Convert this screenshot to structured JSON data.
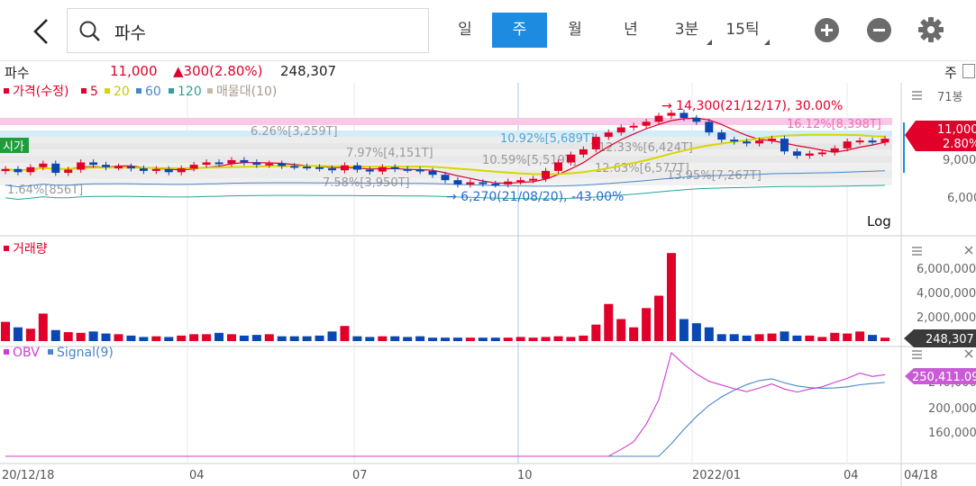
{
  "header": {
    "back_label": "back",
    "search_text": "파수",
    "periods": [
      "일",
      "주",
      "월",
      "년",
      "3분",
      "15틱"
    ],
    "active_period": "주",
    "accent": "#1d8ce0"
  },
  "info": {
    "name": "파수",
    "price": "11,000",
    "change": "▲300(2.80%)",
    "volume": "248,307",
    "side_label": "주"
  },
  "price_panel": {
    "legend_price": "가격(수정)",
    "legend_ma": [
      "5",
      "20",
      "60",
      "120"
    ],
    "legend_box": "매물대(10)",
    "open_label": "시가",
    "log_label": "Log",
    "high_annotation": "→ 14,300(21/12/17), 30.00%",
    "low_annotation": "→ 6,270(21/08/20), -43.00%",
    "supply_labels": [
      "6.26%[3,259T]",
      "16.12%[8,398T]",
      "10.92%[5,689T]",
      "12.33%[6,424T]",
      "7.97%[4,151T]",
      "10.59%[5,519T]",
      "12.63%[6,577T]",
      "7.58%[3,950T]",
      "13.95%[7,267T]",
      "1.64%[856T]"
    ],
    "y_axis": [
      "71봉",
      "9,000",
      "6,000"
    ],
    "price_tag": "11,000",
    "pct_tag": "2.80%"
  },
  "volume_panel": {
    "title": "거래량",
    "y_axis": [
      "6,000,000",
      "4,000,000",
      "2,000,000"
    ],
    "tag": "248,307"
  },
  "obv_panel": {
    "legend_obv": "OBV",
    "legend_signal": "Signal(9)",
    "y_axis": [
      "240,000",
      "200,000",
      "160,000"
    ],
    "tag": "250,411.09"
  },
  "x_axis": [
    "20/12/18",
    "04",
    "07",
    "10",
    "2022/01",
    "04",
    "04/18"
  ],
  "colors": {
    "up": "#e0002a",
    "down": "#0a47b0",
    "ma5": "#e0002a",
    "ma20": "#d7d700",
    "ma60": "#4a85c8",
    "ma120": "#2aa39a",
    "obv": "#d23bd2",
    "signal": "#4a85c8"
  },
  "chart_data": {
    "type": "candlestick",
    "interval": "weekly",
    "period": [
      "2020/12/18",
      "2022/04/18"
    ],
    "price_range_visible": [
      5500,
      16000
    ],
    "scale": "log",
    "high": {
      "value": 14300,
      "date": "21/12/17",
      "pct": 30.0
    },
    "low": {
      "value": 6270,
      "date": "21/08/20",
      "pct": -43.0
    },
    "last_close": 11000,
    "change": 300,
    "change_pct": 2.8,
    "closes": [
      8150,
      7900,
      8300,
      8600,
      7850,
      8100,
      8700,
      8500,
      8300,
      8350,
      8200,
      8000,
      8150,
      7900,
      8200,
      8500,
      8700,
      8600,
      8900,
      8700,
      8500,
      8600,
      8400,
      8350,
      8300,
      8200,
      8050,
      8450,
      8100,
      7950,
      8300,
      8150,
      8100,
      8000,
      7700,
      7300,
      7000,
      7150,
      7050,
      7000,
      7200,
      7300,
      7400,
      8000,
      8700,
      9400,
      9900,
      11200,
      11700,
      12300,
      12500,
      13000,
      13800,
      14200,
      13500,
      13000,
      11700,
      10900,
      10700,
      10500,
      10800,
      11000,
      9700,
      9300,
      9500,
      9600,
      10000,
      10700,
      10800,
      10600,
      11000
    ],
    "volume": [
      1400000,
      1000000,
      900000,
      2000000,
      800000,
      650000,
      600000,
      700000,
      550000,
      500000,
      400000,
      300000,
      350000,
      300000,
      400000,
      500000,
      500000,
      600000,
      500000,
      400000,
      450000,
      500000,
      350000,
      350000,
      350000,
      400000,
      700000,
      1100000,
      350000,
      300000,
      350000,
      350000,
      300000,
      350000,
      250000,
      250000,
      250000,
      250000,
      250000,
      250000,
      250000,
      300000,
      250000,
      300000,
      350000,
      300000,
      400000,
      1200000,
      2700000,
      1600000,
      1000000,
      2400000,
      3300000,
      6400000,
      1600000,
      1300000,
      1000000,
      500000,
      500000,
      400000,
      500000,
      550000,
      700000,
      400000,
      400000,
      300000,
      600000,
      550000,
      700000,
      450000,
      248307
    ],
    "obv_range": [
      140000,
      280000
    ],
    "obv_last": 250411.09
  }
}
